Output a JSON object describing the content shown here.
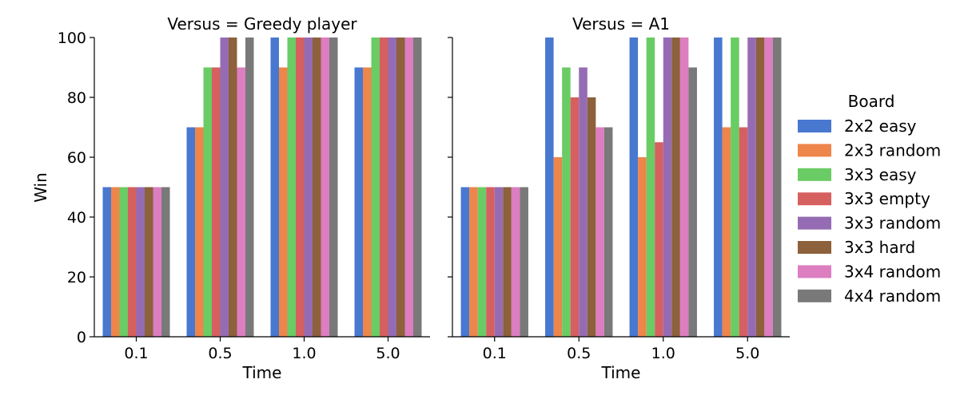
{
  "chart_data": {
    "type": "bar",
    "ylabel": "Win",
    "xlabel": "Time",
    "ylim": [
      0,
      100
    ],
    "yticks": [
      0,
      20,
      40,
      60,
      80,
      100
    ],
    "categories": [
      "0.1",
      "0.5",
      "1.0",
      "5.0"
    ],
    "legend": {
      "title": "Board",
      "placement": "right",
      "entries": [
        "2x2 easy",
        "2x3 random",
        "3x3 easy",
        "3x3 empty",
        "3x3 random",
        "3x3 hard",
        "3x4 random",
        "4x4 random"
      ]
    },
    "colors": [
      "#4878d0",
      "#ee854a",
      "#6acc64",
      "#d65f5f",
      "#956cb4",
      "#8c613c",
      "#dc7ec0",
      "#797979"
    ],
    "panels": [
      {
        "title": "Versus = Greedy player",
        "series": [
          {
            "name": "2x2 easy",
            "values": [
              50,
              70,
              100,
              90
            ]
          },
          {
            "name": "2x3 random",
            "values": [
              50,
              70,
              90,
              90
            ]
          },
          {
            "name": "3x3 easy",
            "values": [
              50,
              90,
              100,
              100
            ]
          },
          {
            "name": "3x3 empty",
            "values": [
              50,
              90,
              100,
              100
            ]
          },
          {
            "name": "3x3 random",
            "values": [
              50,
              100,
              100,
              100
            ]
          },
          {
            "name": "3x3 hard",
            "values": [
              50,
              100,
              100,
              100
            ]
          },
          {
            "name": "3x4 random",
            "values": [
              50,
              90,
              100,
              100
            ]
          },
          {
            "name": "4x4 random",
            "values": [
              50,
              100,
              100,
              100
            ]
          }
        ]
      },
      {
        "title": "Versus = A1",
        "series": [
          {
            "name": "2x2 easy",
            "values": [
              50,
              100,
              100,
              100
            ]
          },
          {
            "name": "2x3 random",
            "values": [
              50,
              60,
              60,
              70
            ]
          },
          {
            "name": "3x3 easy",
            "values": [
              50,
              90,
              100,
              100
            ]
          },
          {
            "name": "3x3 empty",
            "values": [
              50,
              80,
              65,
              70
            ]
          },
          {
            "name": "3x3 random",
            "values": [
              50,
              90,
              100,
              100
            ]
          },
          {
            "name": "3x3 hard",
            "values": [
              50,
              80,
              100,
              100
            ]
          },
          {
            "name": "3x4 random",
            "values": [
              50,
              70,
              100,
              100
            ]
          },
          {
            "name": "4x4 random",
            "values": [
              50,
              70,
              90,
              100
            ]
          }
        ]
      }
    ]
  }
}
